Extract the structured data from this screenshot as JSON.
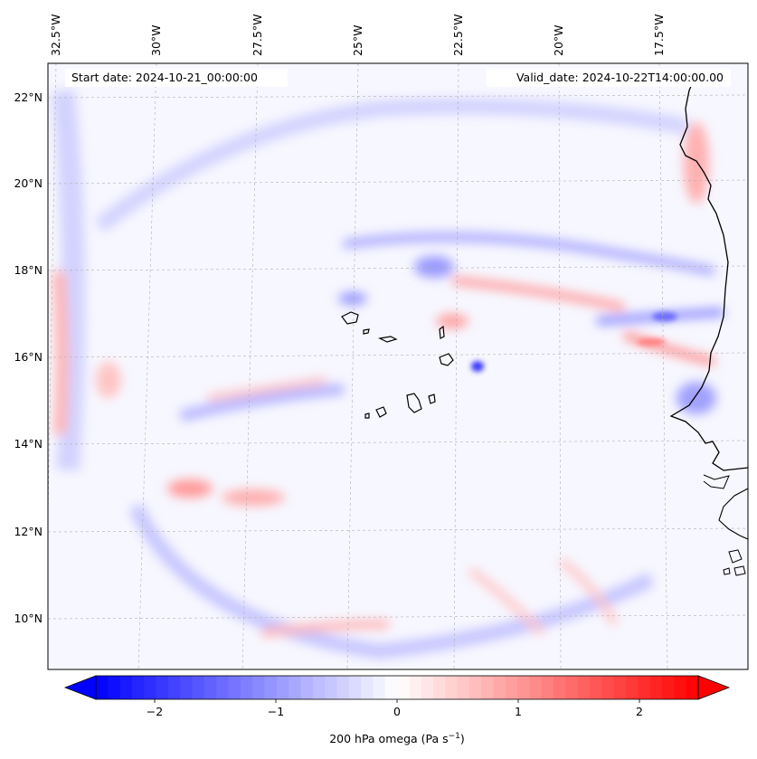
{
  "map": {
    "header": {
      "start_date": "Start date: 2024-10-21_00:00:00",
      "valid_date": "Valid_date: 2024-10-22T14:00:00.00"
    },
    "lon_ticks": [
      "32.5°W",
      "30°W",
      "27.5°W",
      "25°W",
      "22.5°W",
      "20°W",
      "17.5°W"
    ],
    "lat_ticks": [
      "22°N",
      "20°N",
      "18°N",
      "16°N",
      "14°N",
      "12°N",
      "10°N"
    ],
    "colorbar": {
      "ticks": [
        "−2",
        "−1",
        "0",
        "1",
        "2"
      ],
      "label": "200 hPa omega (Pa s",
      "label_superscript": "−1",
      "label_close": ")",
      "min_color": "#0000ff",
      "mid_color": "#ffffff",
      "max_color": "#ff0000"
    }
  }
}
